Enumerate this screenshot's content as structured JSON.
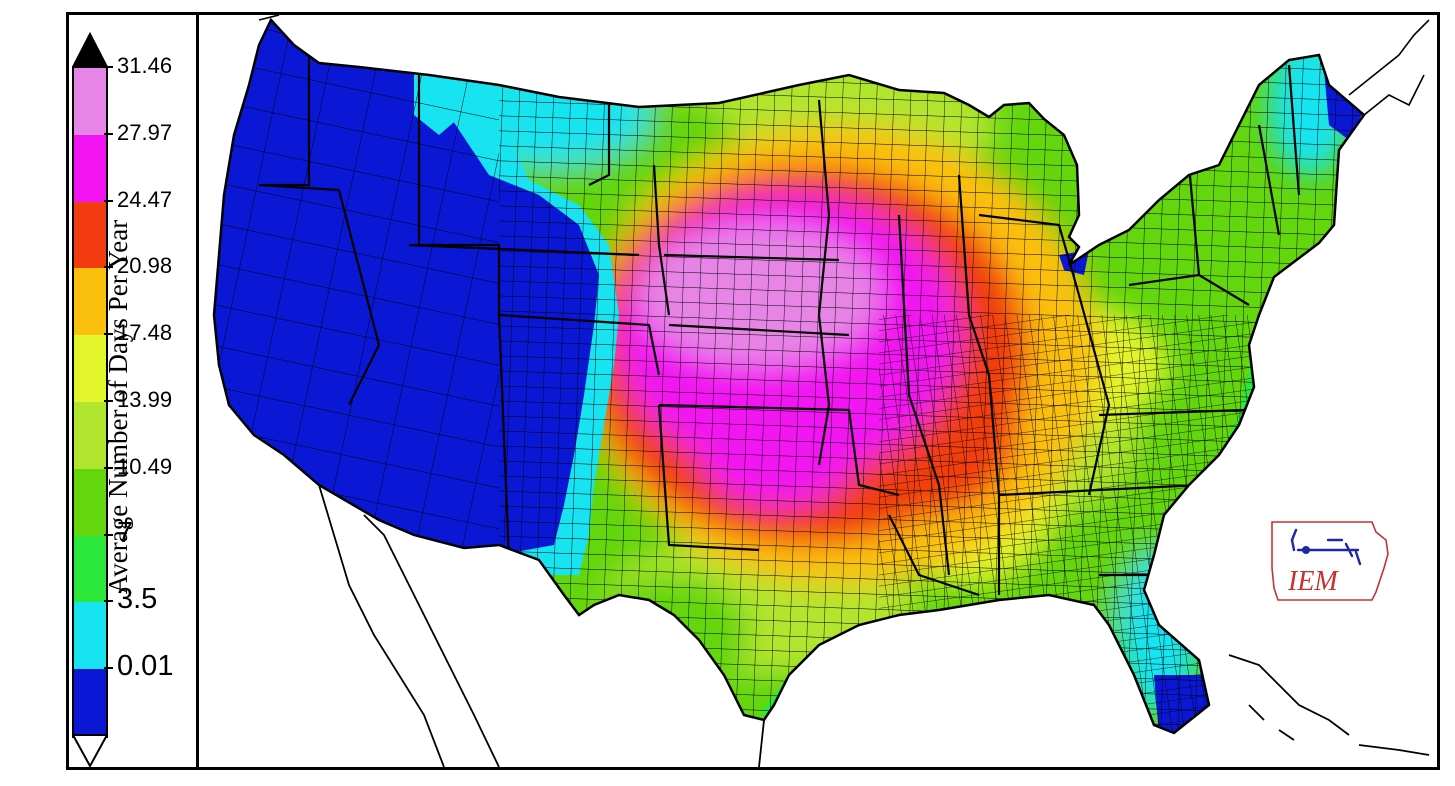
{
  "legend": {
    "title": "Average Number of Days Per Year",
    "ticks": [
      "31.46",
      "27.97",
      "24.47",
      "20.98",
      "17.48",
      "13.99",
      "10.49",
      "7",
      "3.5",
      "0.01"
    ],
    "colors": [
      "#e685e6",
      "#f214f2",
      "#f23c0f",
      "#fbc00c",
      "#e3f52b",
      "#b2e52d",
      "#63d60d",
      "#2ce83d",
      "#18e4f1",
      "#0a18d6"
    ],
    "over_color": "#000000",
    "under_color": "#ffffff"
  },
  "logo": {
    "text": "IEM",
    "icon": "iowa-state-outline-weather-vane-icon",
    "color": "#c8312f"
  },
  "map": {
    "region": "contiguous-united-states-counties",
    "ocean_color": "#ffffff",
    "boundary_color": "#000000"
  }
}
